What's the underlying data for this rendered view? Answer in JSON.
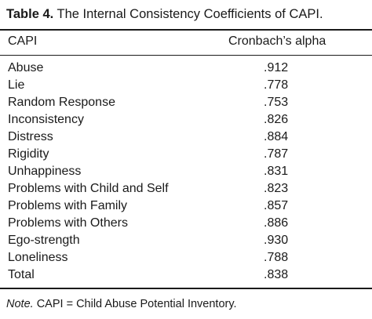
{
  "caption": {
    "label": "Table 4.",
    "title": "The Internal Consistency Coefficients of CAPI."
  },
  "table": {
    "headers": [
      "CAPI",
      "Cronbach’s alpha"
    ],
    "rows": [
      {
        "scale": "Abuse",
        "alpha": ".912"
      },
      {
        "scale": "Lie",
        "alpha": ".778"
      },
      {
        "scale": "Random Response",
        "alpha": ".753"
      },
      {
        "scale": "Inconsistency",
        "alpha": ".826"
      },
      {
        "scale": "Distress",
        "alpha": ".884"
      },
      {
        "scale": "Rigidity",
        "alpha": ".787"
      },
      {
        "scale": "Unhappiness",
        "alpha": ".831"
      },
      {
        "scale": "Problems with Child and Self",
        "alpha": ".823"
      },
      {
        "scale": "Problems with Family",
        "alpha": ".857"
      },
      {
        "scale": "Problems with Others",
        "alpha": ".886"
      },
      {
        "scale": "Ego-strength",
        "alpha": ".930"
      },
      {
        "scale": "Loneliness",
        "alpha": ".788"
      },
      {
        "scale": "Total",
        "alpha": ".838"
      }
    ]
  },
  "note": {
    "label": "Note.",
    "text": "CAPI = Child Abuse Potential Inventory."
  }
}
